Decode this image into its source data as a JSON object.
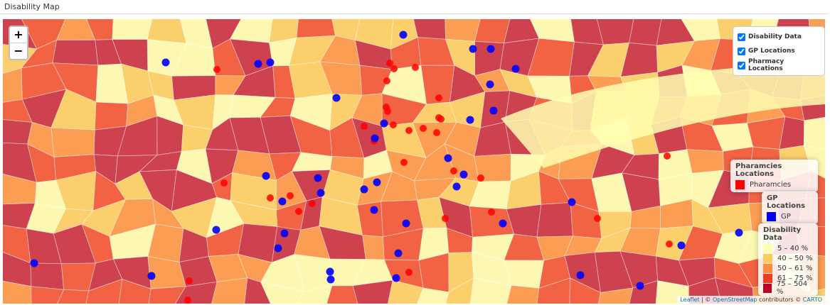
{
  "header": {
    "title": "Disability Map"
  },
  "zoom": {
    "in": "+",
    "out": "−"
  },
  "layers": [
    "Disability Data",
    "GP Locations",
    "Pharmacy Locations"
  ],
  "pharmacy_legend": {
    "title": "Pharamcies Locations",
    "label": "Pharamcies"
  },
  "gp_legend": {
    "title": "GP Locations",
    "label": "GP"
  },
  "disability_legend": {
    "title": "Disability Data",
    "items": [
      "5 – 40 %",
      "40 – 50 %",
      "50 – 61 %",
      "61 – 75 %",
      "75 – 504 %"
    ]
  },
  "attribution": [
    "Leaflet",
    " | © ",
    "OpenStreetMap",
    " contributors © ",
    "CARTO"
  ]
}
